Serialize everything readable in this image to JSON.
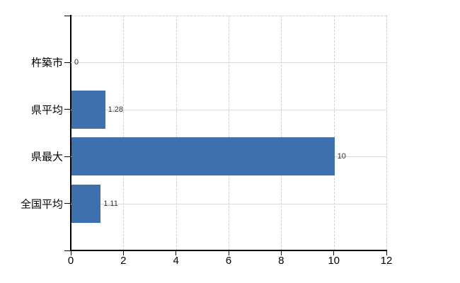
{
  "chart_data": {
    "type": "bar",
    "orientation": "horizontal",
    "title": "",
    "xlabel": "",
    "ylabel": "",
    "categories": [
      "杵築市",
      "県平均",
      "県最大",
      "全国平均"
    ],
    "values": [
      0,
      1.28,
      10,
      1.11
    ],
    "value_labels": [
      "0",
      "1.28",
      "10",
      "1.11"
    ],
    "x_ticks": [
      0,
      2,
      4,
      6,
      8,
      10,
      12
    ],
    "xlim": [
      0,
      12
    ],
    "grid": true,
    "legend": "none",
    "colors": {
      "bar": "#3e6fae",
      "axis": "#000000",
      "horizontal_gridline": "#d9d9d9",
      "vertical_gridline": "#cfcfcf",
      "category_label": "#000000",
      "value_label": "#333333",
      "background": "#ffffff"
    }
  }
}
